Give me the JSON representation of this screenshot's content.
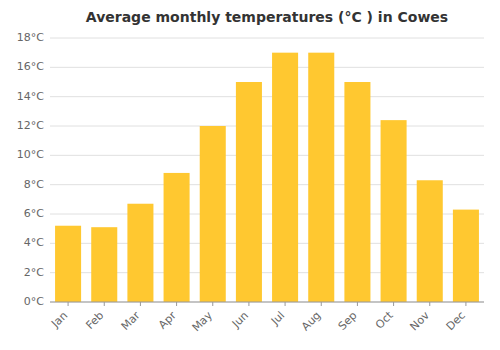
{
  "chart_data": {
    "type": "bar",
    "title": "Average monthly temperatures (°C ) in Cowes",
    "categories": [
      "Jan",
      "Feb",
      "Mar",
      "Apr",
      "May",
      "Jun",
      "Jul",
      "Aug",
      "Sep",
      "Oct",
      "Nov",
      "Dec"
    ],
    "values": [
      5.2,
      5.1,
      6.7,
      8.8,
      12.0,
      15.0,
      17.0,
      17.0,
      15.0,
      12.4,
      8.3,
      6.3
    ],
    "color": "#FFC830",
    "ylim": [
      0,
      18
    ],
    "yticks": [
      {
        "value": 0,
        "label": "0°C"
      },
      {
        "value": 2,
        "label": "2°C"
      },
      {
        "value": 4,
        "label": "4°C"
      },
      {
        "value": 6,
        "label": "6°C"
      },
      {
        "value": 8,
        "label": "8°C"
      },
      {
        "value": 10,
        "label": "10°C"
      },
      {
        "value": 12,
        "label": "12°C"
      },
      {
        "value": 14,
        "label": "14°C"
      },
      {
        "value": 16,
        "label": "16°C"
      },
      {
        "value": 18,
        "label": "18°C"
      }
    ],
    "grid": true
  }
}
